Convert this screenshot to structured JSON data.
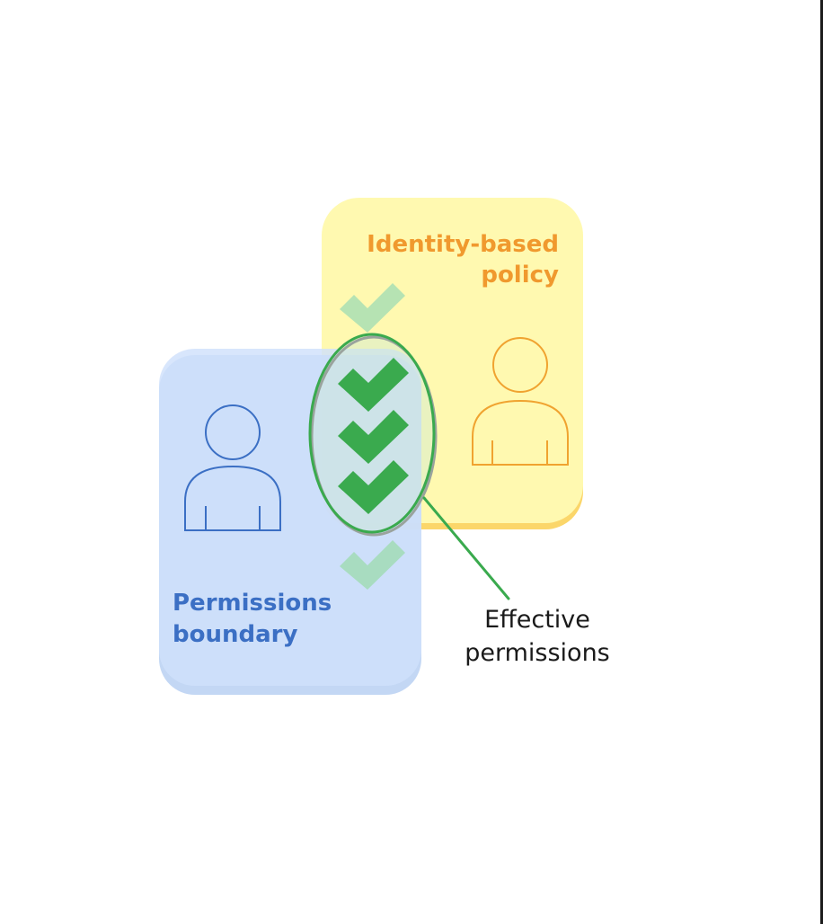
{
  "identity_policy": {
    "label_line1": "Identity-based",
    "label_line2": "policy",
    "color": "#f0992e",
    "panel_color": "#fff9b0"
  },
  "permissions_boundary": {
    "label_line1": "Permissions",
    "label_line2": "boundary",
    "color": "#3b6fc4",
    "panel_color": "#d2e3fb"
  },
  "effective": {
    "label_line1": "Effective",
    "label_line2": "permissions",
    "highlight_color": "#3aaa4e"
  },
  "icons": {
    "user_icon": "user-icon",
    "check_icon": "checkmark-icon"
  }
}
